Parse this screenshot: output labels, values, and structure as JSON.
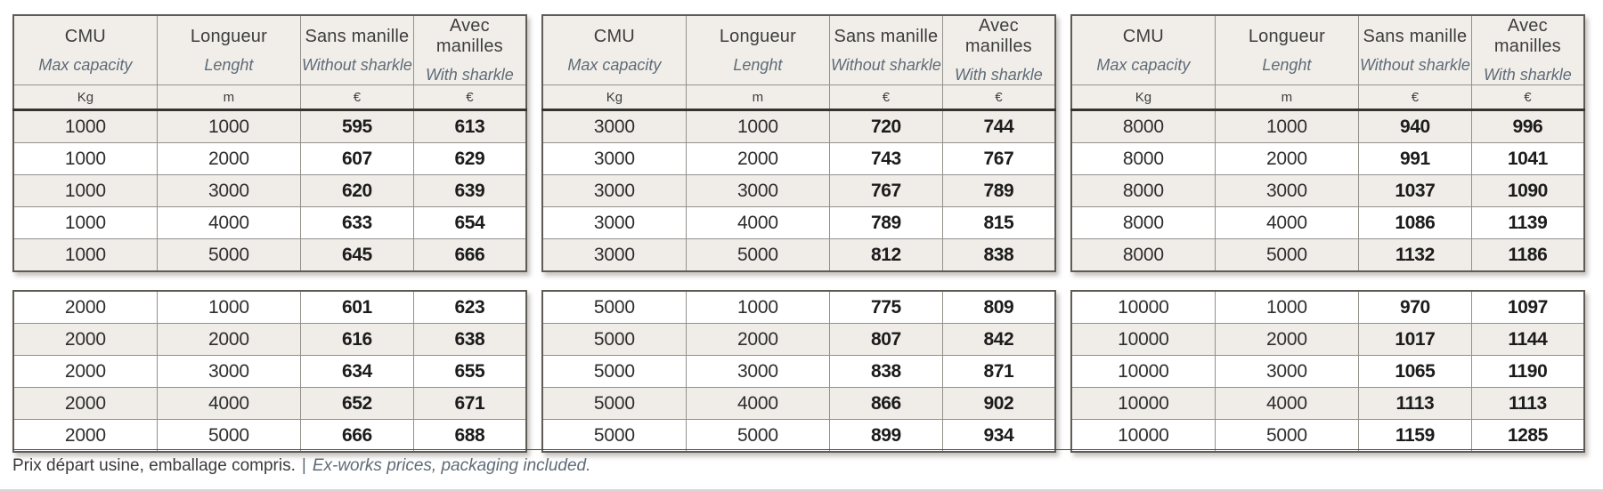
{
  "header": {
    "cols": [
      {
        "fr": "CMU",
        "en": "Max capacity",
        "unit": "Kg"
      },
      {
        "fr": "Longueur",
        "en": "Lenght",
        "unit": "m"
      },
      {
        "fr": "Sans manille",
        "en": "Without sharkle",
        "unit": "€"
      },
      {
        "fr": "Avec manilles",
        "en": "With sharkle",
        "unit": "€"
      }
    ]
  },
  "groups": [
    {
      "top_table": {
        "cmu": "1000",
        "rows": [
          [
            "1000",
            "1000",
            "595",
            "613"
          ],
          [
            "1000",
            "2000",
            "607",
            "629"
          ],
          [
            "1000",
            "3000",
            "620",
            "639"
          ],
          [
            "1000",
            "4000",
            "633",
            "654"
          ],
          [
            "1000",
            "5000",
            "645",
            "666"
          ]
        ]
      },
      "bottom_table": {
        "cmu": "2000",
        "rows": [
          [
            "2000",
            "1000",
            "601",
            "623"
          ],
          [
            "2000",
            "2000",
            "616",
            "638"
          ],
          [
            "2000",
            "3000",
            "634",
            "655"
          ],
          [
            "2000",
            "4000",
            "652",
            "671"
          ],
          [
            "2000",
            "5000",
            "666",
            "688"
          ]
        ]
      }
    },
    {
      "top_table": {
        "cmu": "3000",
        "rows": [
          [
            "3000",
            "1000",
            "720",
            "744"
          ],
          [
            "3000",
            "2000",
            "743",
            "767"
          ],
          [
            "3000",
            "3000",
            "767",
            "789"
          ],
          [
            "3000",
            "4000",
            "789",
            "815"
          ],
          [
            "3000",
            "5000",
            "812",
            "838"
          ]
        ]
      },
      "bottom_table": {
        "cmu": "5000",
        "rows": [
          [
            "5000",
            "1000",
            "775",
            "809"
          ],
          [
            "5000",
            "2000",
            "807",
            "842"
          ],
          [
            "5000",
            "3000",
            "838",
            "871"
          ],
          [
            "5000",
            "4000",
            "866",
            "902"
          ],
          [
            "5000",
            "5000",
            "899",
            "934"
          ]
        ]
      }
    },
    {
      "top_table": {
        "cmu": "8000",
        "rows": [
          [
            "8000",
            "1000",
            "940",
            "996"
          ],
          [
            "8000",
            "2000",
            "991",
            "1041"
          ],
          [
            "8000",
            "3000",
            "1037",
            "1090"
          ],
          [
            "8000",
            "4000",
            "1086",
            "1139"
          ],
          [
            "8000",
            "5000",
            "1132",
            "1186"
          ]
        ]
      },
      "bottom_table": {
        "cmu": "10000",
        "rows": [
          [
            "10000",
            "1000",
            "970",
            "1097"
          ],
          [
            "10000",
            "2000",
            "1017",
            "1144"
          ],
          [
            "10000",
            "3000",
            "1065",
            "1190"
          ],
          [
            "10000",
            "4000",
            "1113",
            "1113"
          ],
          [
            "10000",
            "5000",
            "1159",
            "1285"
          ]
        ]
      }
    }
  ],
  "footer": {
    "text_fr": "Prix départ usine, emballage compris.",
    "separator": "|",
    "text_en": "Ex-works prices, packaging included."
  },
  "colors": {
    "shaded_row": "#f0ede9",
    "header_bg": "#f1eee9",
    "accent_italic_text": "#5e6b77",
    "main_text": "#2e2e2e",
    "grid_border": "#94908b",
    "heavy_border": "#353330"
  }
}
